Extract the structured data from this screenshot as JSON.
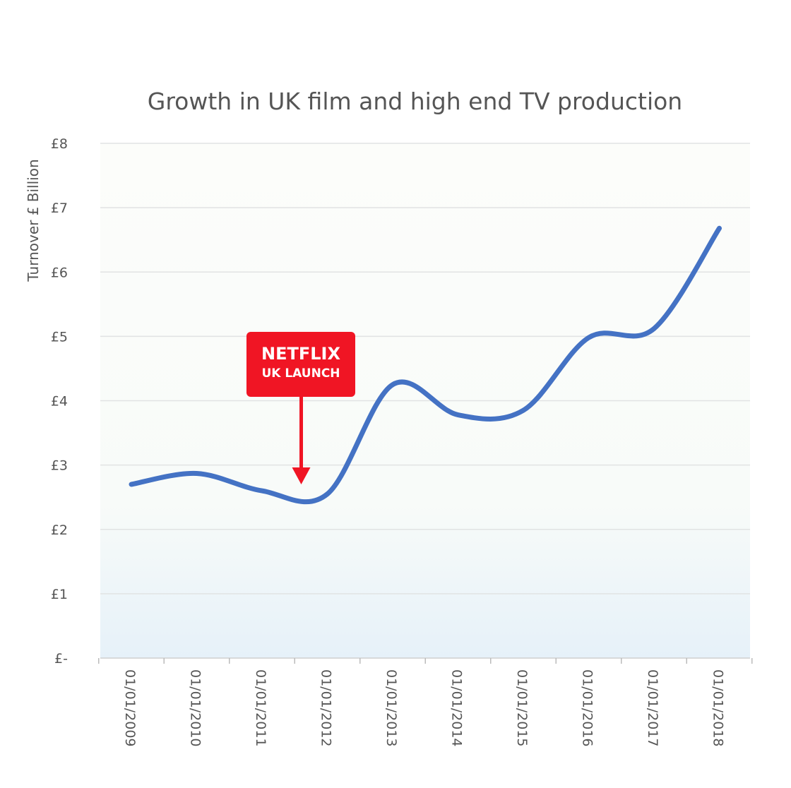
{
  "chart_data": {
    "type": "line",
    "title": "Growth in UK film and high end TV production",
    "ylabel": "Turnover £ Billion",
    "xlabel": "",
    "categories": [
      "01/01/2009",
      "01/01/2010",
      "01/01/2011",
      "01/01/2012",
      "01/01/2013",
      "01/01/2014",
      "01/01/2015",
      "01/01/2016",
      "01/01/2017",
      "01/01/2018"
    ],
    "series": [
      {
        "values": [
          2.7,
          2.87,
          2.6,
          2.55,
          4.25,
          3.78,
          3.85,
          4.98,
          5.12,
          6.68
        ]
      }
    ],
    "ylim": [
      0,
      8
    ],
    "y_tick_labels": [
      "£-",
      "£1",
      "£2",
      "£3",
      "£4",
      "£5",
      "£6",
      "£7",
      "£8"
    ],
    "grid": true,
    "line_color": "#4472c4",
    "annotation": {
      "line1": "NETFLIX",
      "line2": "UK LAUNCH",
      "points_to_year_fraction": 2.6,
      "points_to_value": 2.7,
      "color": "#f01524"
    }
  }
}
